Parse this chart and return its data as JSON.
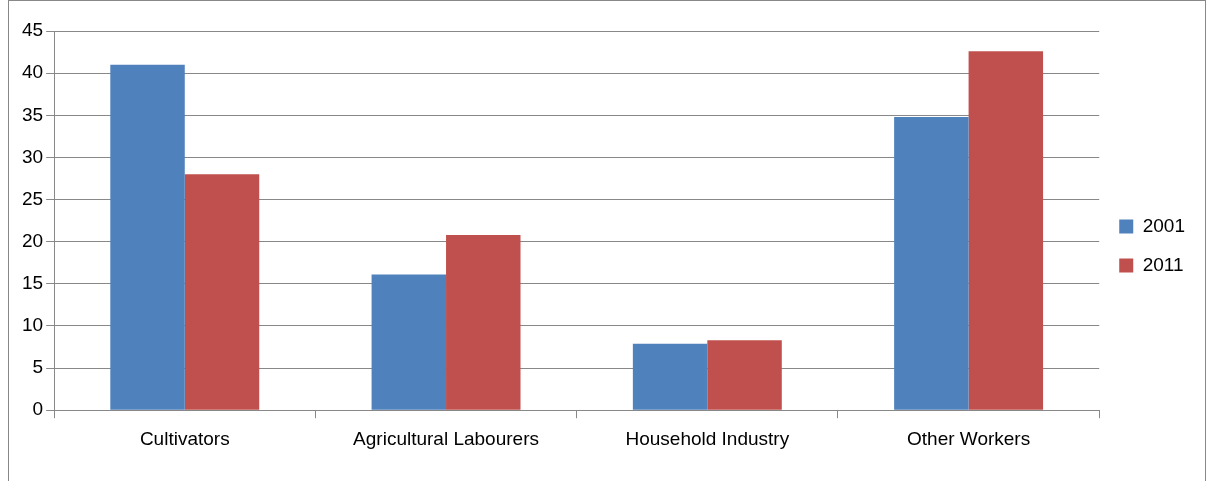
{
  "chart_data": {
    "type": "bar",
    "categories": [
      "Cultivators",
      "Agricultural Labourers",
      "Household Industry",
      "Other Workers"
    ],
    "series": [
      {
        "name": "2001",
        "color": "#4f81bd",
        "values": [
          41.0,
          16.1,
          7.9,
          34.8
        ]
      },
      {
        "name": "2011",
        "color": "#c0504d",
        "values": [
          28.0,
          20.8,
          8.3,
          42.6
        ]
      }
    ],
    "ylim": [
      0,
      45
    ],
    "yticks": [
      0,
      5,
      10,
      15,
      20,
      25,
      30,
      35,
      40,
      45
    ],
    "grid": "y",
    "legend": "right"
  }
}
